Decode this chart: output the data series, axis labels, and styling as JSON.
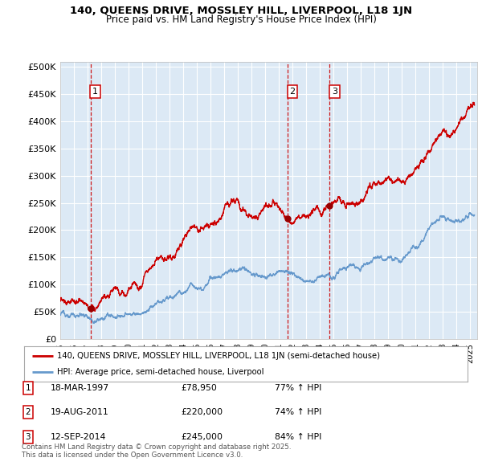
{
  "title_line1": "140, QUEENS DRIVE, MOSSLEY HILL, LIVERPOOL, L18 1JN",
  "title_line2": "Price paid vs. HM Land Registry's House Price Index (HPI)",
  "ylabel_ticks": [
    "£0",
    "£50K",
    "£100K",
    "£150K",
    "£200K",
    "£250K",
    "£300K",
    "£350K",
    "£400K",
    "£450K",
    "£500K"
  ],
  "ytick_values": [
    0,
    50000,
    100000,
    150000,
    200000,
    250000,
    300000,
    350000,
    400000,
    450000,
    500000
  ],
  "ylim": [
    0,
    510000
  ],
  "xlim_start": 1995.0,
  "xlim_end": 2025.5,
  "plot_bg_color": "#dce9f5",
  "grid_color": "#ffffff",
  "sale_points": [
    {
      "date": 1997.21,
      "price": 78950,
      "label": "1"
    },
    {
      "date": 2011.63,
      "price": 220000,
      "label": "2"
    },
    {
      "date": 2014.71,
      "price": 245000,
      "label": "3"
    }
  ],
  "vline_dates": [
    1997.21,
    2011.63,
    2014.71
  ],
  "legend_line1": "140, QUEENS DRIVE, MOSSLEY HILL, LIVERPOOL, L18 1JN (semi-detached house)",
  "legend_line2": "HPI: Average price, semi-detached house, Liverpool",
  "table_entries": [
    {
      "num": "1",
      "date": "18-MAR-1997",
      "price": "£78,950",
      "hpi": "77% ↑ HPI"
    },
    {
      "num": "2",
      "date": "19-AUG-2011",
      "price": "£220,000",
      "hpi": "74% ↑ HPI"
    },
    {
      "num": "3",
      "date": "12-SEP-2014",
      "price": "£245,000",
      "hpi": "84% ↑ HPI"
    }
  ],
  "footnote": "Contains HM Land Registry data © Crown copyright and database right 2025.\nThis data is licensed under the Open Government Licence v3.0.",
  "red_line_color": "#cc0000",
  "blue_line_color": "#6699cc",
  "sale_dot_color": "#990000",
  "vline_color": "#cc0000",
  "label_box_color": "#cc0000",
  "hpi_keypoints": [
    [
      1995.0,
      44000
    ],
    [
      1997.0,
      46000
    ],
    [
      1999.0,
      50000
    ],
    [
      2001.0,
      58000
    ],
    [
      2003.0,
      80000
    ],
    [
      2004.5,
      110000
    ],
    [
      2005.5,
      125000
    ],
    [
      2006.5,
      135000
    ],
    [
      2007.5,
      150000
    ],
    [
      2008.5,
      145000
    ],
    [
      2009.0,
      128000
    ],
    [
      2010.0,
      125000
    ],
    [
      2011.0,
      128000
    ],
    [
      2012.0,
      120000
    ],
    [
      2013.0,
      120000
    ],
    [
      2014.0,
      123000
    ],
    [
      2015.0,
      130000
    ],
    [
      2016.0,
      140000
    ],
    [
      2017.0,
      150000
    ],
    [
      2018.0,
      155000
    ],
    [
      2019.0,
      153000
    ],
    [
      2020.0,
      150000
    ],
    [
      2021.0,
      165000
    ],
    [
      2022.0,
      195000
    ],
    [
      2023.0,
      215000
    ],
    [
      2024.0,
      210000
    ],
    [
      2025.3,
      228000
    ]
  ],
  "prop_keypoints": [
    [
      1995.0,
      72000
    ],
    [
      1996.0,
      74000
    ],
    [
      1997.21,
      78950
    ],
    [
      1998.0,
      80000
    ],
    [
      1999.0,
      82000
    ],
    [
      2000.0,
      87000
    ],
    [
      2001.0,
      95000
    ],
    [
      2002.0,
      110000
    ],
    [
      2003.0,
      130000
    ],
    [
      2004.0,
      170000
    ],
    [
      2004.8,
      205000
    ],
    [
      2005.5,
      215000
    ],
    [
      2006.0,
      225000
    ],
    [
      2006.5,
      235000
    ],
    [
      2007.0,
      250000
    ],
    [
      2007.5,
      262000
    ],
    [
      2008.0,
      255000
    ],
    [
      2008.5,
      240000
    ],
    [
      2009.0,
      228000
    ],
    [
      2009.5,
      225000
    ],
    [
      2010.0,
      232000
    ],
    [
      2010.5,
      235000
    ],
    [
      2011.0,
      228000
    ],
    [
      2011.63,
      220000
    ],
    [
      2012.0,
      215000
    ],
    [
      2012.5,
      218000
    ],
    [
      2013.0,
      220000
    ],
    [
      2013.5,
      225000
    ],
    [
      2014.0,
      228000
    ],
    [
      2014.71,
      245000
    ],
    [
      2015.0,
      250000
    ],
    [
      2015.5,
      258000
    ],
    [
      2016.0,
      270000
    ],
    [
      2016.5,
      285000
    ],
    [
      2017.0,
      290000
    ],
    [
      2017.5,
      295000
    ],
    [
      2018.0,
      298000
    ],
    [
      2018.5,
      300000
    ],
    [
      2019.0,
      300000
    ],
    [
      2019.5,
      295000
    ],
    [
      2020.0,
      295000
    ],
    [
      2020.5,
      305000
    ],
    [
      2021.0,
      330000
    ],
    [
      2021.5,
      360000
    ],
    [
      2022.0,
      380000
    ],
    [
      2022.5,
      395000
    ],
    [
      2023.0,
      405000
    ],
    [
      2023.5,
      400000
    ],
    [
      2024.0,
      405000
    ],
    [
      2024.5,
      415000
    ],
    [
      2025.3,
      430000
    ]
  ]
}
